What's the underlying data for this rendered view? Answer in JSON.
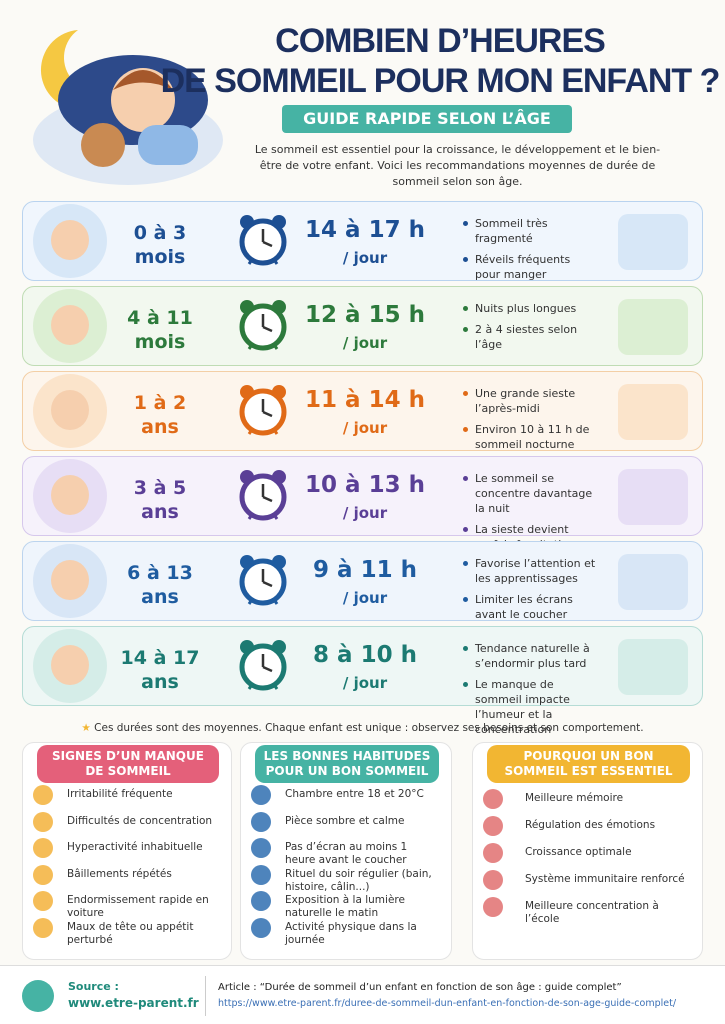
{
  "header": {
    "title_line1": "COMBIEN D’HEURES",
    "title_line2": "DE SOMMEIL POUR MON ENFANT ?",
    "subtitle": "GUIDE RAPIDE SELON L’ÂGE",
    "intro": "Le sommeil est essentiel pour la croissance, le développement et le bien-être de votre enfant. Voici les recommandations moyennes de durée de sommeil selon son âge."
  },
  "rows": [
    {
      "age": [
        "0 à 3",
        "mois"
      ],
      "hours": "14 à 17 h",
      "per": "/ jour",
      "notes": [
        "Sommeil très fragmenté",
        "Réveils fréquents pour manger"
      ]
    },
    {
      "age": [
        "4 à 11",
        "mois"
      ],
      "hours": "12 à 15 h",
      "per": "/ jour",
      "notes": [
        "Nuits plus longues",
        "2 à 4 siestes selon l’âge"
      ]
    },
    {
      "age": [
        "1 à 2",
        "ans"
      ],
      "hours": "11 à 14 h",
      "per": "/ jour",
      "notes": [
        "Une grande sieste l’après-midi",
        "Environ 10 à 11 h de sommeil nocturne"
      ]
    },
    {
      "age": [
        "3 à 5",
        "ans"
      ],
      "hours": "10 à 13 h",
      "per": "/ jour",
      "notes": [
        "Le sommeil se concentre davantage la nuit",
        "La sieste devient parfois facultative"
      ]
    },
    {
      "age": [
        "6 à 13",
        "ans"
      ],
      "hours": "9 à 11 h",
      "per": "/ jour",
      "notes": [
        "Favorise l’attention et les apprentissages",
        "Limiter les écrans avant le coucher"
      ]
    },
    {
      "age": [
        "14 à 17",
        "ans"
      ],
      "hours": "8 à 10 h",
      "per": "/ jour",
      "notes": [
        "Tendance naturelle à s’endormir plus tard",
        "Le manque de sommeil impacte l’humeur et la concentration"
      ]
    }
  ],
  "footnote": "Ces durées sont des moyennes. Chaque enfant est unique : observez ses besoins et son comportement.",
  "panels": [
    {
      "title": "SIGNES D’UN MANQUE DE SOMMEIL",
      "items": [
        "Irritabilité fréquente",
        "Difficultés de concentration",
        "Hyperactivité inhabituelle",
        "Bâillements répétés",
        "Endormissement rapide en voiture",
        "Maux de tête ou appétit perturbé"
      ]
    },
    {
      "title": "LES BONNES HABITUDES POUR UN BON SOMMEIL",
      "items": [
        "Chambre entre 18 et 20°C",
        "Pièce sombre et calme",
        "Pas d’écran au moins 1 heure avant le coucher",
        "Rituel du soir régulier (bain, histoire, câlin...)",
        "Exposition à la lumière naturelle le matin",
        "Activité physique dans la journée"
      ]
    },
    {
      "title": "POURQUOI UN BON SOMMEIL EST ESSENTIEL",
      "items": [
        "Meilleure mémoire",
        "Régulation des émotions",
        "Croissance optimale",
        "Système immunitaire renforcé",
        "Meilleure concentration à l’école"
      ]
    }
  ],
  "footer": {
    "source_label": "Source :",
    "source": "www.etre-parent.fr",
    "article": "Article : “Durée de sommeil d’un enfant en fonction de son âge : guide complet”",
    "url": "https://www.etre-parent.fr/duree-de-sommeil-dun-enfant-en-fonction-de-son-age-guide-complet/"
  }
}
